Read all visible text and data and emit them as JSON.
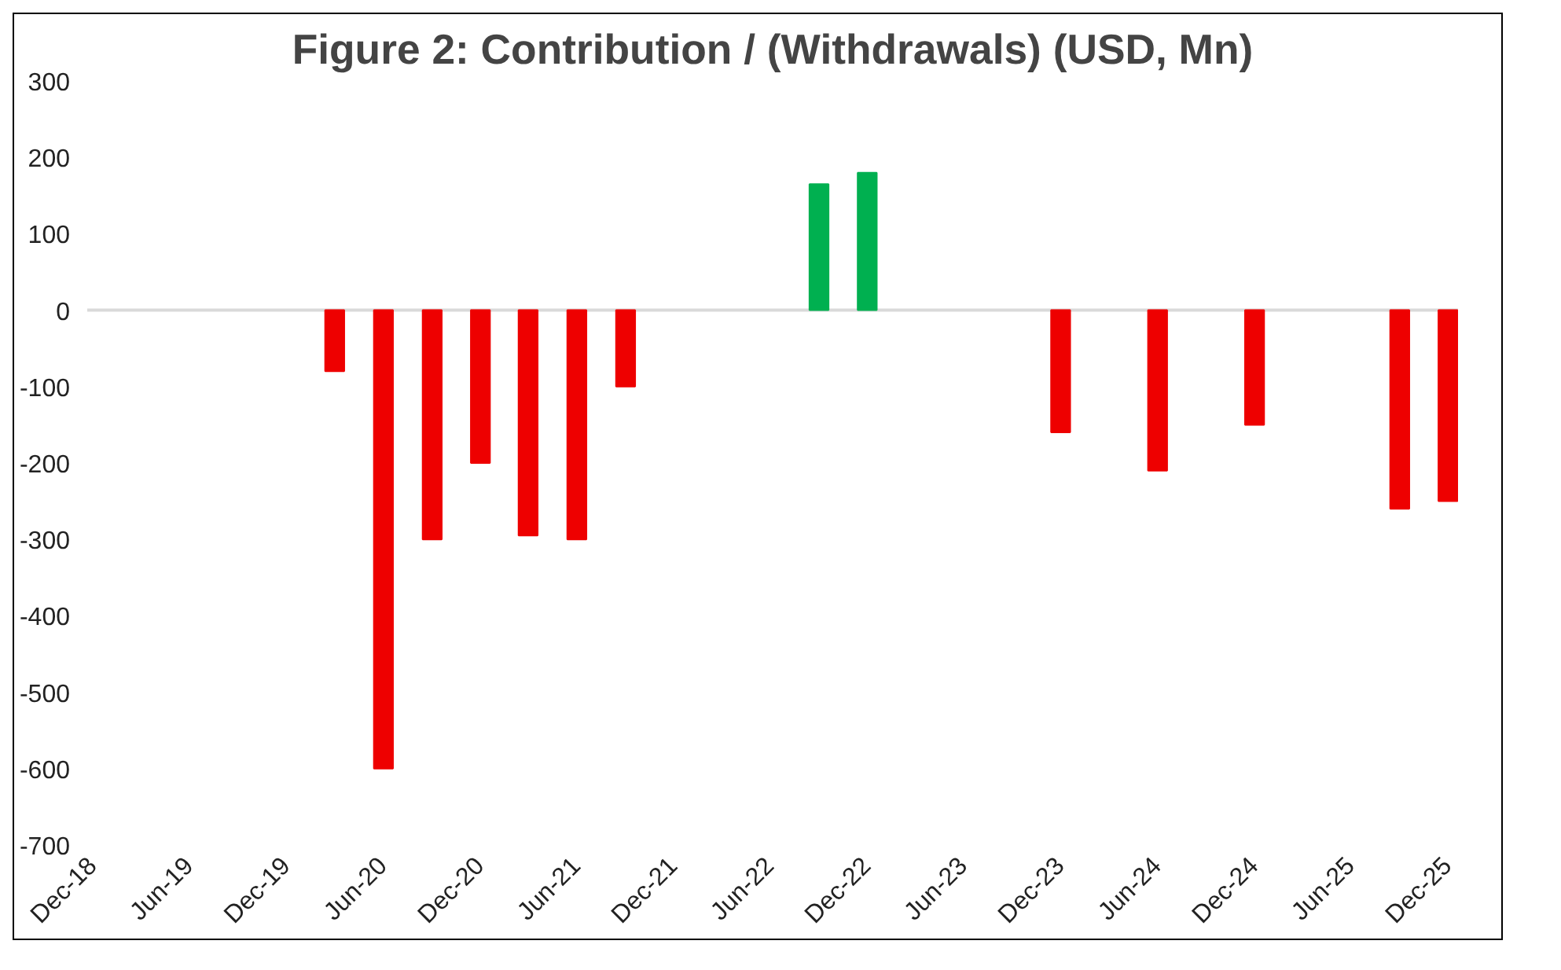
{
  "chart_data": {
    "type": "bar",
    "title": "Figure 2: Contribution / (Withdrawals) (USD, Mn)",
    "x": [
      "2020-03",
      "2020-06",
      "2020-09",
      "2020-12",
      "2021-03",
      "2021-06",
      "2021-09",
      "2022-09",
      "2022-12",
      "2023-12",
      "2024-06",
      "2024-12",
      "2025-09",
      "2025-12"
    ],
    "values": [
      -80,
      -600,
      -300,
      -200,
      -295,
      -300,
      -100,
      165,
      180,
      -160,
      -210,
      -150,
      -260,
      -250
    ],
    "colors": [
      "#ee0000",
      "#ee0000",
      "#ee0000",
      "#ee0000",
      "#ee0000",
      "#ee0000",
      "#ee0000",
      "#00b050",
      "#00b050",
      "#ee0000",
      "#ee0000",
      "#ee0000",
      "#ee0000",
      "#ee0000"
    ],
    "xlim": [
      "2018-11-20",
      "2025-12-20"
    ],
    "xticks": [
      {
        "value": "2018-12",
        "label": "Dec-18"
      },
      {
        "value": "2019-06",
        "label": "Jun-19"
      },
      {
        "value": "2019-12",
        "label": "Dec-19"
      },
      {
        "value": "2020-06",
        "label": "Jun-20"
      },
      {
        "value": "2020-12",
        "label": "Dec-20"
      },
      {
        "value": "2021-06",
        "label": "Jun-21"
      },
      {
        "value": "2021-12",
        "label": "Dec-21"
      },
      {
        "value": "2022-06",
        "label": "Jun-22"
      },
      {
        "value": "2022-12",
        "label": "Dec-22"
      },
      {
        "value": "2023-06",
        "label": "Jun-23"
      },
      {
        "value": "2023-12",
        "label": "Dec-23"
      },
      {
        "value": "2024-06",
        "label": "Jun-24"
      },
      {
        "value": "2024-12",
        "label": "Dec-24"
      },
      {
        "value": "2025-06",
        "label": "Jun-25"
      },
      {
        "value": "2025-12",
        "label": "Dec-25"
      }
    ],
    "ylim": [
      -700,
      300
    ],
    "yticks": [
      -700,
      -600,
      -500,
      -400,
      -300,
      -200,
      -100,
      0,
      100,
      200,
      300
    ],
    "ref_lines": [
      {
        "axis": "y",
        "value": 0,
        "label": null,
        "color": "#d9d9d9"
      }
    ],
    "grid": false
  }
}
